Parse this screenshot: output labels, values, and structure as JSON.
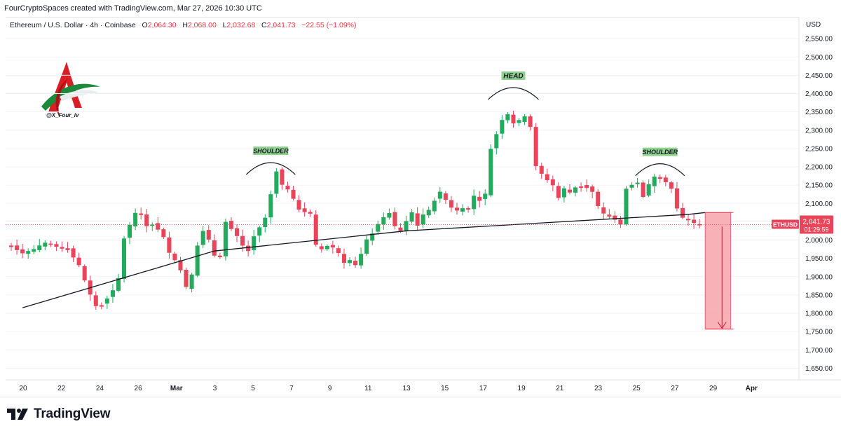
{
  "attribution": "FourCryptoSpaces created with TradingView.com, Mar 27, 2026 10:30 UTC",
  "legend": {
    "symbol": "Ethereum / U.S. Dollar · 4h · Coinbase",
    "open_label": "O",
    "open": "2,064.30",
    "high_label": "H",
    "high": "2,068.00",
    "low_label": "L",
    "low": "2,032.68",
    "close_label": "C",
    "close": "2,041.73",
    "change": "−22.55 (−1.09%)"
  },
  "watermark": {
    "handle": "@X_Four_iv"
  },
  "brand": {
    "name": "TradingView"
  },
  "colors": {
    "up": "#26a69a",
    "up_bright": "#22ab5c",
    "down": "#e8445a",
    "target_zone": "#f7a8ae",
    "label_green": "#8fd18f"
  },
  "price_tag": {
    "symbol": "ETHUSD",
    "price": "2,041.73",
    "countdown": "01:29:59"
  },
  "chart_data": {
    "type": "candlestick",
    "currency": "USD",
    "ylim": [
      1600,
      2600
    ],
    "y_ticks": [
      1650,
      1700,
      1750,
      1800,
      1850,
      1900,
      1950,
      2000,
      2050,
      2100,
      2150,
      2200,
      2250,
      2300,
      2350,
      2400,
      2450,
      2500,
      2550
    ],
    "y_tick_labels": [
      "1,650.00",
      "1,700.00",
      "1,750.00",
      "1,800.00",
      "1,850.00",
      "1,900.00",
      "1,950.00",
      "2,000.00",
      "2,050.00",
      "2,100.00",
      "2,150.00",
      "2,200.00",
      "2,250.00",
      "2,300.00",
      "2,350.00",
      "2,400.00",
      "2,450.00",
      "2,500.00",
      "2,550.00"
    ],
    "x_ticks": [
      "20",
      "22",
      "24",
      "26",
      "Mar",
      "3",
      "5",
      "7",
      "9",
      "11",
      "13",
      "15",
      "17",
      "19",
      "21",
      "23",
      "25",
      "27",
      "29",
      "Apr"
    ],
    "price_path": [
      [
        0,
        1985
      ],
      [
        2,
        1965
      ],
      [
        4,
        1975
      ],
      [
        6,
        1990
      ],
      [
        8,
        1982
      ],
      [
        10,
        1975
      ],
      [
        12,
        1930
      ],
      [
        14,
        1850
      ],
      [
        15,
        1820
      ],
      [
        16,
        1825
      ],
      [
        18,
        1860
      ],
      [
        19,
        1895
      ],
      [
        20,
        2005
      ],
      [
        22,
        2075
      ],
      [
        23,
        2070
      ],
      [
        24,
        2040
      ],
      [
        25,
        2045
      ],
      [
        27,
        2010
      ],
      [
        28,
        1965
      ],
      [
        29,
        1945
      ],
      [
        30,
        1920
      ],
      [
        31,
        1870
      ],
      [
        32,
        1905
      ],
      [
        33,
        1985
      ],
      [
        34,
        2025
      ],
      [
        35,
        2000
      ],
      [
        36,
        1960
      ],
      [
        37,
        1955
      ],
      [
        38,
        2050
      ],
      [
        39,
        2030
      ],
      [
        40,
        2010
      ],
      [
        41,
        1985
      ],
      [
        42,
        1970
      ],
      [
        43,
        2010
      ],
      [
        45,
        2060
      ],
      [
        46,
        2125
      ],
      [
        47,
        2190
      ],
      [
        48,
        2150
      ],
      [
        49,
        2140
      ],
      [
        50,
        2110
      ],
      [
        51,
        2085
      ],
      [
        53,
        2070
      ],
      [
        54,
        1985
      ],
      [
        55,
        1975
      ],
      [
        56,
        1985
      ],
      [
        57,
        1980
      ],
      [
        58,
        1965
      ],
      [
        59,
        1940
      ],
      [
        60,
        1945
      ],
      [
        61,
        1930
      ],
      [
        62,
        1960
      ],
      [
        63,
        2000
      ],
      [
        64,
        2020
      ],
      [
        65,
        2045
      ],
      [
        66,
        2060
      ],
      [
        67,
        2075
      ],
      [
        68,
        2035
      ],
      [
        69,
        2025
      ],
      [
        70,
        2050
      ],
      [
        71,
        2075
      ],
      [
        72,
        2040
      ],
      [
        73,
        2070
      ],
      [
        74,
        2080
      ],
      [
        75,
        2110
      ],
      [
        76,
        2130
      ],
      [
        77,
        2110
      ],
      [
        78,
        2090
      ],
      [
        79,
        2080
      ],
      [
        80,
        2090
      ],
      [
        81,
        2085
      ],
      [
        82,
        2120
      ],
      [
        83,
        2110
      ],
      [
        84,
        2125
      ],
      [
        85,
        2250
      ],
      [
        86,
        2290
      ],
      [
        87,
        2330
      ],
      [
        88,
        2345
      ],
      [
        89,
        2320
      ],
      [
        90,
        2325
      ],
      [
        91,
        2340
      ],
      [
        92,
        2310
      ],
      [
        93,
        2200
      ],
      [
        94,
        2180
      ],
      [
        95,
        2165
      ],
      [
        96,
        2150
      ],
      [
        97,
        2115
      ],
      [
        98,
        2140
      ],
      [
        99,
        2130
      ],
      [
        100,
        2145
      ],
      [
        101,
        2150
      ],
      [
        102,
        2145
      ],
      [
        103,
        2130
      ],
      [
        104,
        2090
      ],
      [
        105,
        2070
      ],
      [
        106,
        2065
      ],
      [
        107,
        2055
      ],
      [
        108,
        2045
      ],
      [
        109,
        2140
      ],
      [
        110,
        2150
      ],
      [
        111,
        2155
      ],
      [
        112,
        2120
      ],
      [
        113,
        2150
      ],
      [
        114,
        2175
      ],
      [
        115,
        2170
      ],
      [
        116,
        2160
      ],
      [
        117,
        2140
      ],
      [
        118,
        2085
      ],
      [
        119,
        2060
      ],
      [
        120,
        2055
      ],
      [
        121,
        2045
      ],
      [
        122,
        2042
      ]
    ],
    "trendline": [
      [
        2,
        1815
      ],
      [
        36,
        1970
      ],
      [
        70,
        2025
      ],
      [
        120,
        2070
      ],
      [
        123,
        2075
      ]
    ],
    "annotations": [
      {
        "text": "SHOULDER",
        "x": 46,
        "y": 2240
      },
      {
        "text": "HEAD",
        "x": 89,
        "y": 2445
      },
      {
        "text": "SHOULDER",
        "x": 115,
        "y": 2237
      }
    ],
    "target": {
      "from": 2075,
      "to": 1757
    }
  }
}
